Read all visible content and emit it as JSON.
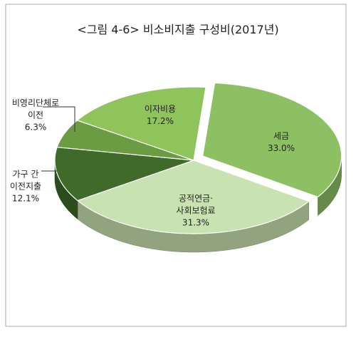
{
  "chart_data": {
    "type": "pie",
    "title": "<그림 4-6> 비소비지출 구성비(2017년)",
    "categories": [
      "세금",
      "공적연금·\n사회보험료",
      "가구 간\n이전지출",
      "비영리단체로\n이전",
      "이자비용"
    ],
    "values": [
      33.0,
      31.3,
      12.1,
      6.3,
      17.2
    ],
    "value_labels": [
      "33.0%",
      "31.3%",
      "12.1%",
      "6.3%",
      "17.2%"
    ],
    "colors": [
      "#8dc063",
      "#c9e2b1",
      "#3f6a2a",
      "#6b9b42",
      "#8fc35c"
    ]
  }
}
